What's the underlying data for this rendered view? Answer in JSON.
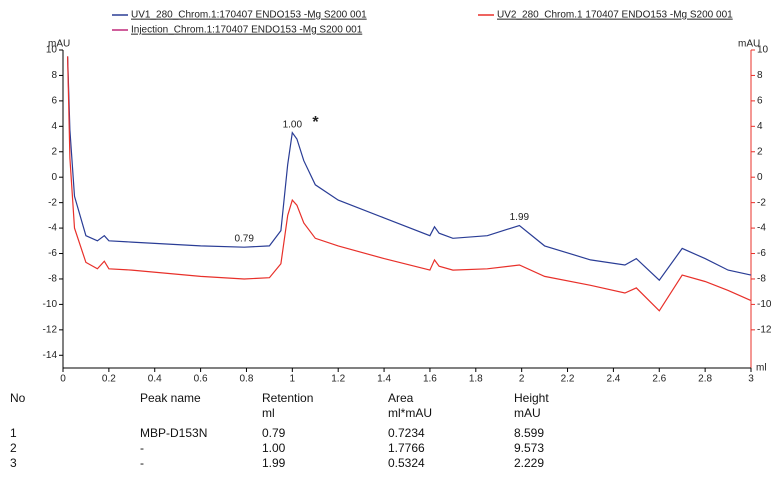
{
  "chart_data": {
    "type": "line",
    "y_unit_left": "mAU",
    "y_unit_right": "mAU",
    "x_unit": "ml",
    "x": [
      0.02,
      0.03,
      0.05,
      0.1,
      0.15,
      0.18,
      0.2,
      0.3,
      0.6,
      0.79,
      0.9,
      0.95,
      0.98,
      1.0,
      1.02,
      1.05,
      1.1,
      1.2,
      1.4,
      1.6,
      1.62,
      1.64,
      1.7,
      1.85,
      1.99,
      2.1,
      2.3,
      2.45,
      2.5,
      2.6,
      2.7,
      2.8,
      2.9,
      3.0
    ],
    "series": [
      {
        "name": "UV1_280_Chrom.1:170407 ENDO153 -Mg S200 001",
        "color": "#2a3d96",
        "values": [
          9.5,
          3.7,
          -1.5,
          -4.6,
          -5.0,
          -4.6,
          -5.0,
          -5.1,
          -5.4,
          -5.5,
          -5.4,
          -4.2,
          1.0,
          3.5,
          3.0,
          1.3,
          -0.6,
          -1.8,
          -3.2,
          -4.6,
          -3.9,
          -4.4,
          -4.8,
          -4.6,
          -3.8,
          -5.4,
          -6.5,
          -6.9,
          -6.4,
          -8.1,
          -5.6,
          -6.4,
          -7.3,
          -7.7
        ]
      },
      {
        "name": "UV2_280_Chrom.1 170407 ENDO153 -Mg S200 001",
        "color": "#e8302a",
        "values": [
          9.5,
          1.5,
          -4.0,
          -6.7,
          -7.2,
          -6.6,
          -7.2,
          -7.3,
          -7.8,
          -8.0,
          -7.9,
          -6.8,
          -3.0,
          -1.8,
          -2.2,
          -3.6,
          -4.8,
          -5.4,
          -6.4,
          -7.3,
          -6.5,
          -7.0,
          -7.3,
          -7.2,
          -6.9,
          -7.8,
          -8.5,
          -9.1,
          -8.7,
          -10.5,
          -7.7,
          -8.2,
          -8.9,
          -9.7
        ]
      },
      {
        "name": "Injection_Chrom.1:170407 ENDO153 -Mg S200 001",
        "color": "#c0287a",
        "values": [
          null,
          null,
          null,
          null,
          null,
          null,
          null,
          null,
          null,
          null,
          null,
          null,
          null,
          null,
          null,
          null,
          null,
          null,
          null,
          null,
          null,
          null,
          null,
          null,
          null,
          null,
          null,
          null,
          null,
          null,
          null,
          null,
          null,
          null
        ]
      }
    ],
    "xlim": [
      0,
      3
    ],
    "xticks": [
      0,
      0.2,
      0.4,
      0.6,
      0.8,
      1,
      1.2,
      1.4,
      1.6,
      1.8,
      2,
      2.2,
      2.4,
      2.6,
      2.8,
      3
    ],
    "ylim": [
      -15,
      10
    ],
    "yticks": [
      -14,
      -12,
      -10,
      -8,
      -6,
      -4,
      -2,
      0,
      2,
      4,
      6,
      8,
      10
    ],
    "y2lim": [
      -15,
      10
    ],
    "y2ticks": [
      -12,
      -10,
      -8,
      -6,
      -4,
      -2,
      0,
      2,
      4,
      6,
      8,
      10
    ],
    "peaks": [
      {
        "value": 0.79,
        "label": "0.79"
      },
      {
        "value": 1,
        "label": "1.00"
      },
      {
        "value": 1.99,
        "label": "1.99"
      }
    ],
    "marker_text": "*"
  },
  "table": {
    "columns": [
      {
        "name": "No"
      },
      {
        "name": "Peak name"
      },
      {
        "name": "Retention",
        "unit": "ml"
      },
      {
        "name": "Area",
        "unit": "ml*mAU"
      },
      {
        "name": "Height",
        "unit": "mAU"
      }
    ],
    "rows": [
      [
        "1",
        "MBP-D153N",
        "0.79",
        "0.7234",
        "8.599"
      ],
      [
        "2",
        "-",
        "1.00",
        "1.7766",
        "9.573"
      ],
      [
        "3",
        "-",
        "1.99",
        "0.5324",
        "2.229"
      ]
    ]
  }
}
